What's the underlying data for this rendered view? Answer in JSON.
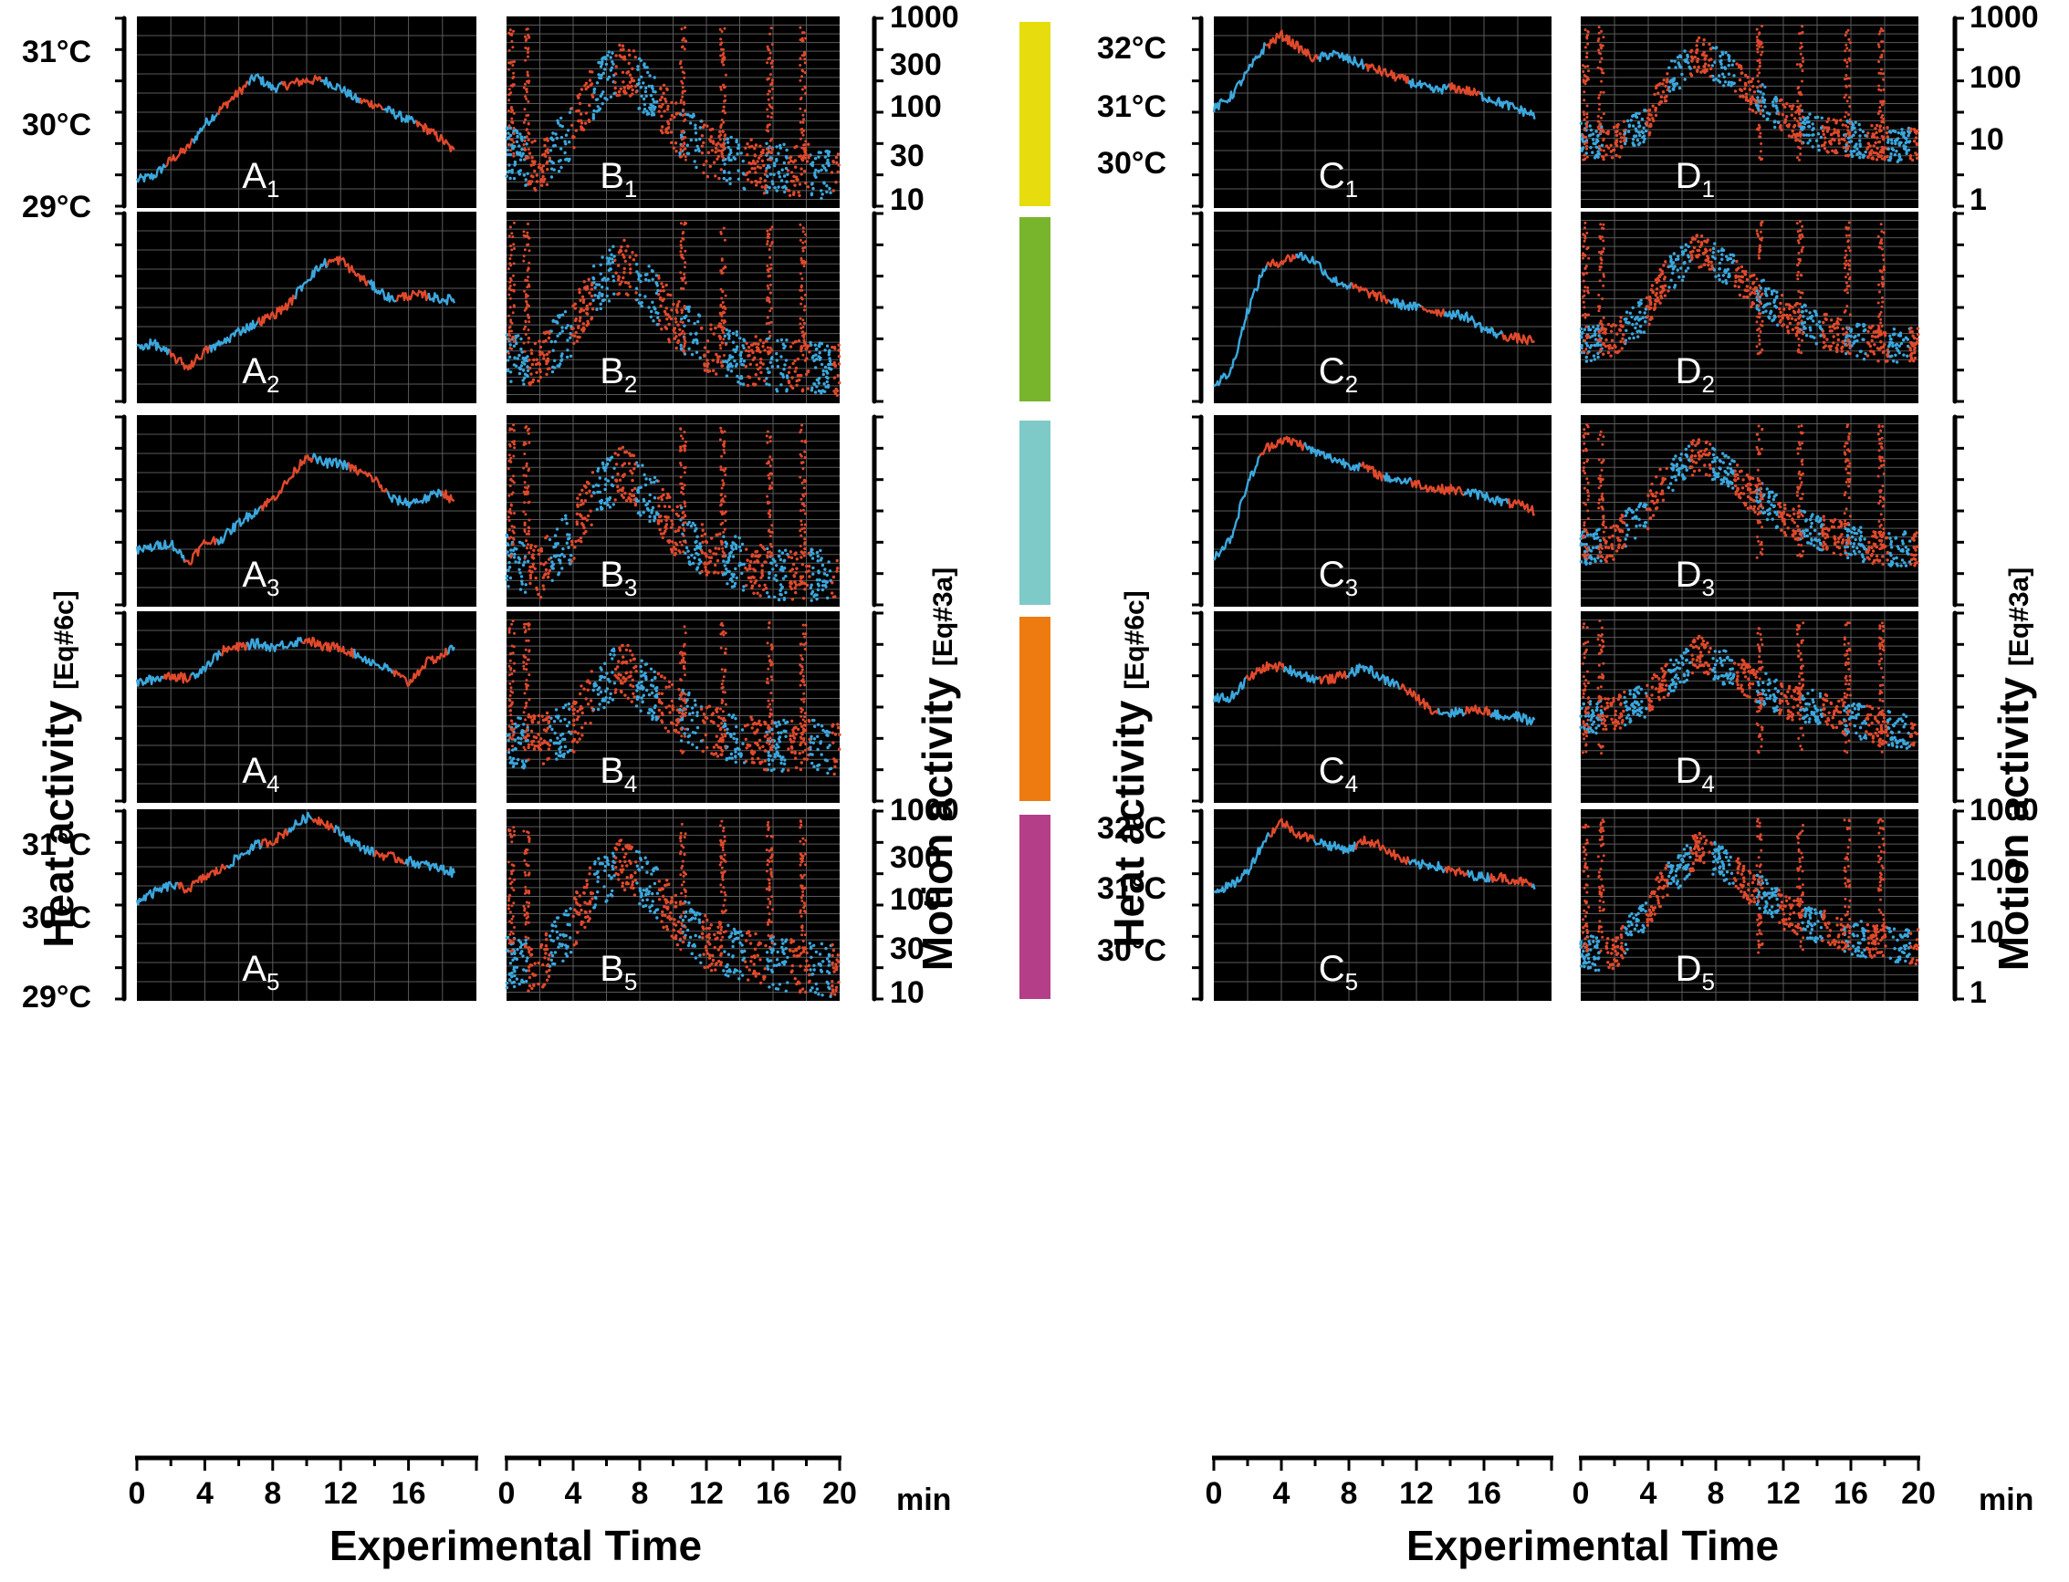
{
  "figure": {
    "left_x_title": "Experimental Time",
    "right_x_title": "Experimental Time",
    "x_unit": "min",
    "left_heat_title": "Heat activity",
    "left_heat_sub": "[Eq#6c]",
    "left_motion_title": "Motion activity",
    "left_motion_sub": "[Eq#3a]",
    "right_heat_title": "Heat activity",
    "right_heat_sub": "[Eq#6c]",
    "right_motion_title": "Motion activity",
    "right_motion_sub": "[Eq#3a]"
  },
  "colors": {
    "line_blue": "#3ba7dd",
    "line_red": "#e0492b",
    "panel_bg": "#000000",
    "grid": "#5a5a5a",
    "condition_bars": [
      "#e6dc0e",
      "#78b52c",
      "#7ecac8",
      "#ee7b10",
      "#b43e88"
    ]
  },
  "chart_data": [
    {
      "type": "line",
      "group": "A",
      "title": "Heat activity (left column)",
      "x_ticks": [
        "0",
        "4",
        "8",
        "12",
        "16"
      ],
      "xlim": [
        0,
        20
      ],
      "y_ticks_top": [
        "31°C",
        "30°C",
        "29°C"
      ],
      "y_ticks_bottom": [
        "31°C",
        "30°C",
        "29°C"
      ],
      "ylim": [
        29,
        31.4
      ],
      "panels": [
        {
          "label": "A",
          "sub": "1",
          "x": [
            0,
            1,
            2,
            3,
            4,
            5,
            6,
            7,
            8,
            9,
            10,
            11,
            12,
            13,
            14,
            15,
            16,
            17,
            18,
            18.7
          ],
          "y": [
            29.35,
            29.4,
            29.6,
            29.75,
            30.05,
            30.25,
            30.45,
            30.65,
            30.5,
            30.55,
            30.6,
            30.6,
            30.5,
            30.35,
            30.3,
            30.2,
            30.1,
            30.0,
            29.85,
            29.7
          ]
        },
        {
          "label": "A",
          "sub": "2",
          "x": [
            0,
            1,
            2,
            3,
            4,
            5,
            6,
            7,
            8,
            9,
            10,
            11,
            12,
            13,
            14,
            15,
            16,
            17,
            18,
            18.7
          ],
          "y": [
            29.7,
            29.75,
            29.6,
            29.45,
            29.65,
            29.75,
            29.9,
            30.0,
            30.1,
            30.25,
            30.55,
            30.75,
            30.8,
            30.6,
            30.45,
            30.3,
            30.35,
            30.35,
            30.3,
            30.3
          ]
        },
        {
          "label": "A",
          "sub": "3",
          "x": [
            0,
            1,
            2,
            3,
            4,
            5,
            6,
            7,
            8,
            9,
            10,
            11,
            12,
            13,
            14,
            15,
            16,
            17,
            18,
            18.7
          ],
          "y": [
            29.7,
            29.75,
            29.8,
            29.55,
            29.8,
            29.85,
            30.05,
            30.2,
            30.35,
            30.6,
            30.9,
            30.8,
            30.8,
            30.7,
            30.6,
            30.35,
            30.3,
            30.35,
            30.45,
            30.3
          ]
        },
        {
          "label": "A",
          "sub": "4",
          "x": [
            0,
            1,
            2,
            3,
            4,
            5,
            6,
            7,
            8,
            9,
            10,
            11,
            12,
            13,
            14,
            15,
            16,
            17,
            18,
            18.7
          ],
          "y": [
            30.5,
            30.55,
            30.6,
            30.55,
            30.7,
            30.9,
            30.95,
            31.0,
            30.95,
            31.0,
            31.05,
            30.95,
            30.95,
            30.85,
            30.75,
            30.65,
            30.5,
            30.75,
            30.85,
            30.95
          ]
        },
        {
          "label": "A",
          "sub": "5",
          "x": [
            0,
            1,
            2,
            3,
            4,
            5,
            6,
            7,
            8,
            9,
            10,
            11,
            12,
            13,
            14,
            15,
            16,
            17,
            18,
            18.7
          ],
          "y": [
            30.25,
            30.35,
            30.45,
            30.4,
            30.55,
            30.65,
            30.8,
            30.95,
            31.0,
            31.15,
            31.3,
            31.25,
            31.1,
            30.95,
            30.85,
            30.8,
            30.75,
            30.7,
            30.65,
            30.6
          ]
        }
      ]
    },
    {
      "type": "scatter",
      "group": "B",
      "title": "Motion activity (left column)",
      "x_ticks": [
        "0",
        "4",
        "8",
        "12",
        "16",
        "20"
      ],
      "xlim": [
        0,
        20
      ],
      "y_scale": "log",
      "y_ticks_top": [
        "1000",
        "300",
        "100",
        "30",
        "10"
      ],
      "y_ticks_bottom": [
        "1000",
        "300",
        "100",
        "30",
        "10"
      ],
      "ylim": [
        10,
        1000
      ],
      "panels": [
        {
          "label": "B",
          "sub": "1",
          "x": [
            0,
            2,
            4,
            6,
            7,
            8,
            10,
            12,
            14,
            16,
            18,
            20
          ],
          "y": [
            40,
            25,
            60,
            220,
            300,
            200,
            70,
            40,
            30,
            25,
            25,
            20
          ]
        },
        {
          "label": "B",
          "sub": "2",
          "x": [
            0,
            2,
            4,
            6,
            7,
            8,
            10,
            12,
            14,
            16,
            18,
            20
          ],
          "y": [
            30,
            25,
            60,
            200,
            280,
            180,
            70,
            40,
            30,
            25,
            25,
            22
          ]
        },
        {
          "label": "B",
          "sub": "3",
          "x": [
            0,
            2,
            4,
            6,
            7,
            8,
            10,
            12,
            14,
            16,
            18,
            20
          ],
          "y": [
            30,
            22,
            55,
            190,
            260,
            170,
            65,
            35,
            28,
            22,
            22,
            20
          ]
        },
        {
          "label": "B",
          "sub": "4",
          "x": [
            0,
            2,
            4,
            6,
            7,
            8,
            10,
            12,
            14,
            16,
            18,
            20
          ],
          "y": [
            40,
            45,
            60,
            180,
            260,
            170,
            90,
            60,
            45,
            40,
            40,
            35
          ]
        },
        {
          "label": "B",
          "sub": "5",
          "x": [
            0,
            2,
            4,
            6,
            7,
            8,
            10,
            12,
            14,
            16,
            18,
            20
          ],
          "y": [
            25,
            22,
            60,
            200,
            280,
            190,
            75,
            40,
            30,
            25,
            22,
            20
          ]
        }
      ]
    },
    {
      "type": "line",
      "group": "C",
      "title": "Heat activity (right column)",
      "x_ticks": [
        "0",
        "4",
        "8",
        "12",
        "16"
      ],
      "xlim": [
        0,
        20
      ],
      "y_ticks_top": [
        "32°C",
        "31°C",
        "30°C"
      ],
      "y_ticks_bottom": [
        "32°C",
        "31°C",
        "30°C"
      ],
      "ylim": [
        29.3,
        32.4
      ],
      "panels": [
        {
          "label": "C",
          "sub": "1",
          "x": [
            0,
            1,
            2,
            3,
            4,
            5,
            6,
            7,
            8,
            9,
            10,
            11,
            12,
            13,
            14,
            15,
            16,
            17,
            18,
            19
          ],
          "y": [
            30.9,
            31.1,
            31.5,
            31.9,
            32.1,
            31.9,
            31.7,
            31.8,
            31.7,
            31.6,
            31.5,
            31.4,
            31.3,
            31.2,
            31.25,
            31.2,
            31.1,
            31.0,
            30.9,
            30.8
          ]
        },
        {
          "label": "C",
          "sub": "2",
          "x": [
            0,
            1,
            2,
            3,
            4,
            5,
            6,
            7,
            8,
            9,
            10,
            11,
            12,
            13,
            14,
            15,
            16,
            17,
            18,
            19
          ],
          "y": [
            29.6,
            29.8,
            30.8,
            31.5,
            31.6,
            31.7,
            31.6,
            31.3,
            31.2,
            31.1,
            31.0,
            30.9,
            30.85,
            30.8,
            30.75,
            30.7,
            30.5,
            30.4,
            30.35,
            30.3
          ]
        },
        {
          "label": "C",
          "sub": "3",
          "x": [
            0,
            1,
            2,
            3,
            4,
            5,
            6,
            7,
            8,
            9,
            10,
            11,
            12,
            13,
            14,
            15,
            16,
            17,
            18,
            19
          ],
          "y": [
            30.1,
            30.4,
            31.3,
            31.85,
            32.0,
            31.95,
            31.8,
            31.7,
            31.6,
            31.55,
            31.4,
            31.35,
            31.3,
            31.2,
            31.2,
            31.15,
            31.1,
            31.0,
            30.95,
            30.85
          ]
        },
        {
          "label": "C",
          "sub": "4",
          "x": [
            0,
            1,
            2,
            3,
            4,
            5,
            6,
            7,
            8,
            9,
            10,
            11,
            12,
            13,
            14,
            15,
            16,
            17,
            18,
            19
          ],
          "y": [
            31.0,
            31.0,
            31.3,
            31.5,
            31.5,
            31.4,
            31.3,
            31.3,
            31.4,
            31.5,
            31.3,
            31.2,
            31.0,
            30.8,
            30.75,
            30.8,
            30.8,
            30.7,
            30.7,
            30.6
          ]
        },
        {
          "label": "C",
          "sub": "5",
          "x": [
            0,
            1,
            2,
            3,
            4,
            5,
            6,
            7,
            8,
            9,
            10,
            11,
            12,
            13,
            14,
            15,
            16,
            17,
            18,
            19
          ],
          "y": [
            31.1,
            31.15,
            31.4,
            31.9,
            32.2,
            32.0,
            31.9,
            31.8,
            31.75,
            31.9,
            31.8,
            31.6,
            31.5,
            31.5,
            31.4,
            31.35,
            31.3,
            31.3,
            31.25,
            31.15
          ]
        }
      ]
    },
    {
      "type": "scatter",
      "group": "D",
      "title": "Motion activity (right column)",
      "x_ticks": [
        "0",
        "4",
        "8",
        "12",
        "16",
        "20"
      ],
      "xlim": [
        0,
        20
      ],
      "y_scale": "log",
      "y_ticks_top": [
        "1000",
        "100",
        "10",
        "1"
      ],
      "y_ticks_bottom": [
        "1000",
        "100",
        "10",
        "1"
      ],
      "ylim": [
        1,
        1000
      ],
      "panels": [
        {
          "label": "D",
          "sub": "1",
          "x": [
            0,
            2,
            4,
            6,
            7,
            8,
            10,
            12,
            14,
            16,
            18,
            20
          ],
          "y": [
            12,
            10,
            20,
            150,
            250,
            180,
            60,
            25,
            15,
            12,
            10,
            10
          ]
        },
        {
          "label": "D",
          "sub": "2",
          "x": [
            0,
            2,
            4,
            6,
            7,
            8,
            10,
            12,
            14,
            16,
            18,
            20
          ],
          "y": [
            8,
            10,
            25,
            150,
            250,
            170,
            60,
            25,
            15,
            10,
            8,
            8
          ]
        },
        {
          "label": "D",
          "sub": "3",
          "x": [
            0,
            2,
            4,
            6,
            7,
            8,
            10,
            12,
            14,
            16,
            18,
            20
          ],
          "y": [
            8,
            10,
            30,
            160,
            240,
            160,
            60,
            25,
            15,
            10,
            8,
            8
          ]
        },
        {
          "label": "D",
          "sub": "4",
          "x": [
            0,
            2,
            4,
            6,
            7,
            8,
            10,
            12,
            14,
            16,
            18,
            20
          ],
          "y": [
            20,
            25,
            40,
            120,
            220,
            150,
            80,
            40,
            30,
            20,
            15,
            12
          ]
        },
        {
          "label": "D",
          "sub": "5",
          "x": [
            0,
            2,
            4,
            6,
            7,
            8,
            10,
            12,
            14,
            16,
            18,
            20
          ],
          "y": [
            6,
            5,
            20,
            120,
            250,
            160,
            60,
            25,
            15,
            10,
            8,
            7
          ]
        }
      ]
    }
  ]
}
